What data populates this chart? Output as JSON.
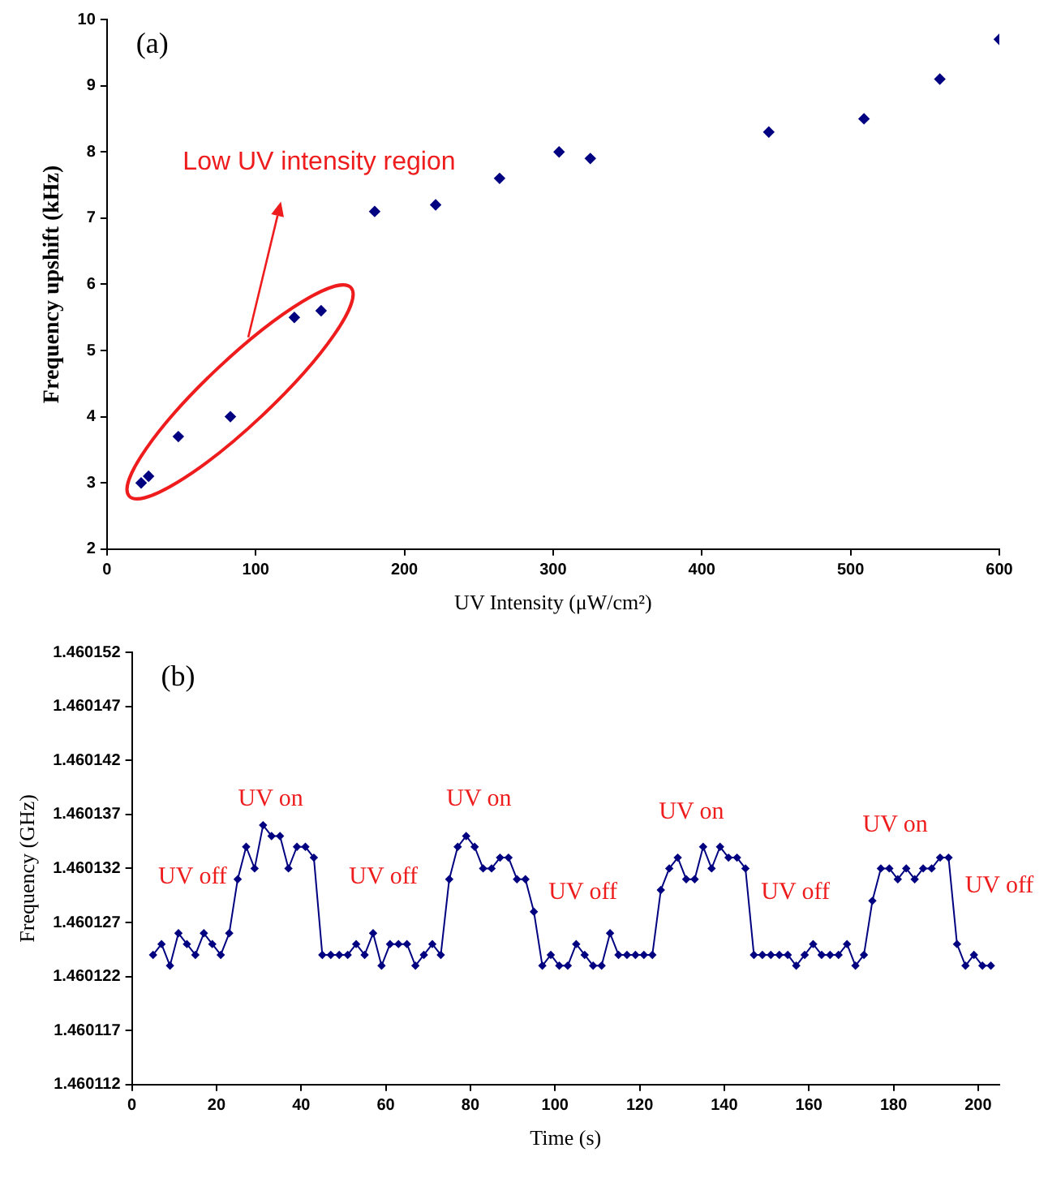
{
  "chart_data": [
    {
      "type": "scatter",
      "xlabel": "UV Intensity (μW/cm²)",
      "ylabel": "Frequency upshift (kHz)",
      "x": [
        23,
        28,
        48,
        83,
        126,
        144,
        180,
        221,
        264,
        304,
        325,
        445,
        509,
        560,
        600
      ],
      "series": [
        {
          "color": "#000080",
          "values": [
            3.0,
            3.1,
            3.7,
            4.0,
            5.5,
            5.6,
            7.1,
            7.2,
            7.6,
            8.0,
            7.9,
            8.3,
            8.5,
            9.1,
            9.7
          ]
        }
      ],
      "xlim": [
        0,
        600
      ],
      "xticks": [
        0,
        100,
        200,
        300,
        400,
        500,
        600
      ],
      "ylim": [
        2,
        10
      ],
      "yticks": [
        2,
        3,
        4,
        5,
        6,
        7,
        8,
        9,
        10
      ],
      "marker": "diamond",
      "grid": false,
      "legend": false,
      "annotations": [
        "(a)",
        "Low UV intensity region"
      ]
    },
    {
      "type": "line",
      "xlabel": "Time (s)",
      "ylabel": "Frequency (GHz)",
      "x": [
        5,
        7,
        9,
        11,
        13,
        15,
        17,
        19,
        21,
        23,
        25,
        27,
        29,
        31,
        33,
        35,
        37,
        39,
        41,
        43,
        45,
        47,
        49,
        51,
        53,
        55,
        57,
        59,
        61,
        63,
        65,
        67,
        69,
        71,
        73,
        75,
        77,
        79,
        81,
        83,
        85,
        87,
        89,
        91,
        93,
        95,
        97,
        99,
        101,
        103,
        105,
        107,
        109,
        111,
        113,
        115,
        117,
        119,
        121,
        123,
        125,
        127,
        129,
        131,
        133,
        135,
        137,
        139,
        141,
        143,
        145,
        147,
        149,
        151,
        153,
        155,
        157,
        159,
        161,
        163,
        165,
        167,
        169,
        171,
        173,
        175,
        177,
        179,
        181,
        183,
        185,
        187,
        189,
        191,
        193,
        195,
        197,
        199,
        201,
        203
      ],
      "series": [
        {
          "color": "#000080",
          "values": [
            1.460124,
            1.460125,
            1.460123,
            1.460126,
            1.460125,
            1.460124,
            1.460126,
            1.460125,
            1.460124,
            1.460126,
            1.460131,
            1.460134,
            1.460132,
            1.460136,
            1.460135,
            1.460135,
            1.460132,
            1.460134,
            1.460134,
            1.460133,
            1.460124,
            1.460124,
            1.460124,
            1.460124,
            1.460125,
            1.460124,
            1.460126,
            1.460123,
            1.460125,
            1.460125,
            1.460125,
            1.460123,
            1.460124,
            1.460125,
            1.460124,
            1.460131,
            1.460134,
            1.460135,
            1.460134,
            1.460132,
            1.460132,
            1.460133,
            1.460133,
            1.460131,
            1.460131,
            1.460128,
            1.460123,
            1.460124,
            1.460123,
            1.460123,
            1.460125,
            1.460124,
            1.460123,
            1.460123,
            1.460126,
            1.460124,
            1.460124,
            1.460124,
            1.460124,
            1.460124,
            1.46013,
            1.460132,
            1.460133,
            1.460131,
            1.460131,
            1.460134,
            1.460132,
            1.460134,
            1.460133,
            1.460133,
            1.460132,
            1.460124,
            1.460124,
            1.460124,
            1.460124,
            1.460124,
            1.460123,
            1.460124,
            1.460125,
            1.460124,
            1.460124,
            1.460124,
            1.460125,
            1.460123,
            1.460124,
            1.460129,
            1.460132,
            1.460132,
            1.460131,
            1.460132,
            1.460131,
            1.460132,
            1.460132,
            1.460133,
            1.460133,
            1.460125,
            1.460123,
            1.460124,
            1.460123,
            1.460123
          ]
        }
      ],
      "xlim": [
        0,
        205
      ],
      "xticks": [
        0,
        20,
        40,
        60,
        80,
        100,
        120,
        140,
        160,
        180,
        200
      ],
      "ylim": [
        1.460112,
        1.460152
      ],
      "yticks": [
        1.460112,
        1.460117,
        1.460122,
        1.460127,
        1.460132,
        1.460137,
        1.460142,
        1.460147,
        1.460152
      ],
      "marker": "diamond",
      "line_style": "solid",
      "grid": false,
      "legend": false,
      "annotations": [
        "(b)",
        "UV off",
        "UV on",
        "UV off",
        "UV on",
        "UV off",
        "UV on",
        "UV off",
        "UV on",
        "UV off"
      ]
    }
  ]
}
